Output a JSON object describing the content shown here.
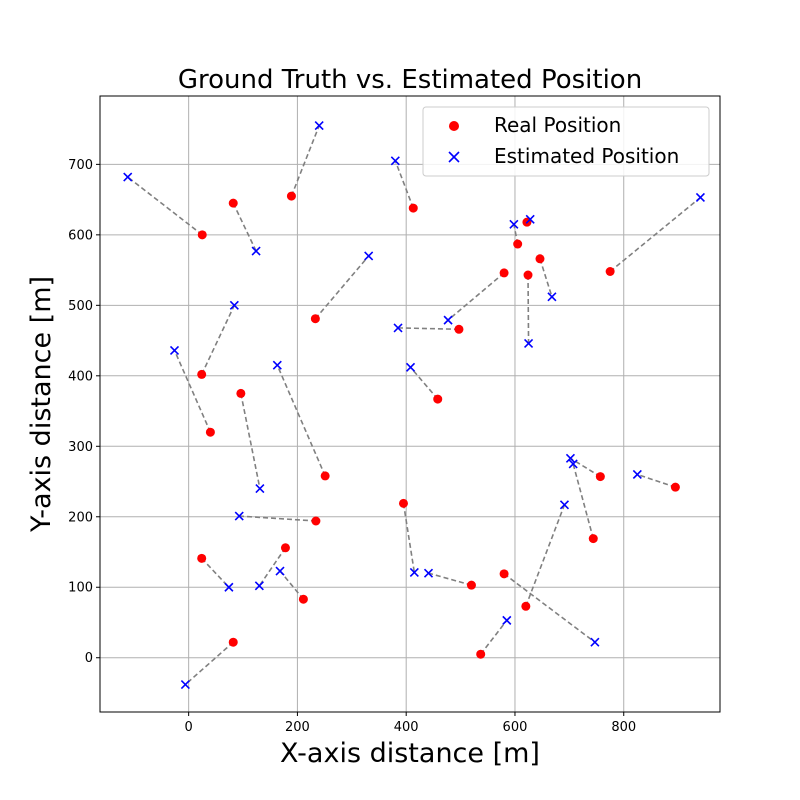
{
  "chart_data": {
    "type": "scatter",
    "title": "Ground Truth vs. Estimated Position",
    "xlabel": "X-axis distance [m]",
    "ylabel": "Y-axis distance [m]",
    "xlim": [
      -163,
      977
    ],
    "ylim": [
      -77,
      797
    ],
    "xticks": [
      0,
      200,
      400,
      600,
      800
    ],
    "yticks": [
      0,
      100,
      200,
      300,
      400,
      500,
      600,
      700
    ],
    "grid": true,
    "legend_position": "top-right",
    "colors": {
      "real": "#ff0000",
      "estimated": "#0000ff",
      "link": "#808080"
    },
    "series": [
      {
        "name": "Real Position",
        "marker": "circle",
        "points": [
          [
            189,
            655
          ],
          [
            413,
            638
          ],
          [
            82,
            645
          ],
          [
            25,
            600
          ],
          [
            622,
            618
          ],
          [
            605,
            587
          ],
          [
            580,
            546
          ],
          [
            624,
            543
          ],
          [
            646,
            566
          ],
          [
            775,
            548
          ],
          [
            233,
            481
          ],
          [
            497,
            466
          ],
          [
            24,
            402
          ],
          [
            96,
            375
          ],
          [
            458,
            367
          ],
          [
            40,
            320
          ],
          [
            251,
            258
          ],
          [
            757,
            257
          ],
          [
            895,
            242
          ],
          [
            395,
            219
          ],
          [
            744,
            169
          ],
          [
            234,
            194
          ],
          [
            178,
            156
          ],
          [
            24,
            141
          ],
          [
            520,
            103
          ],
          [
            211,
            83
          ],
          [
            580,
            119
          ],
          [
            620,
            73
          ],
          [
            82,
            22
          ],
          [
            537,
            5
          ]
        ]
      },
      {
        "name": "Estimated Position",
        "marker": "x",
        "points": [
          [
            240,
            755
          ],
          [
            380,
            705
          ],
          [
            124,
            577
          ],
          [
            -112,
            682
          ],
          [
            628,
            622
          ],
          [
            598,
            615
          ],
          [
            477,
            479
          ],
          [
            625,
            446
          ],
          [
            668,
            512
          ],
          [
            941,
            653
          ],
          [
            331,
            570
          ],
          [
            385,
            468
          ],
          [
            84,
            500
          ],
          [
            131,
            240
          ],
          [
            408,
            412
          ],
          [
            -26,
            436
          ],
          [
            163,
            415
          ],
          [
            702,
            283
          ],
          [
            825,
            260
          ],
          [
            415,
            121
          ],
          [
            707,
            275
          ],
          [
            93,
            201
          ],
          [
            130,
            102
          ],
          [
            74,
            100
          ],
          [
            441,
            120
          ],
          [
            168,
            123
          ],
          [
            747,
            22
          ],
          [
            691,
            217
          ],
          [
            -6,
            -38
          ],
          [
            585,
            53
          ]
        ]
      }
    ]
  }
}
